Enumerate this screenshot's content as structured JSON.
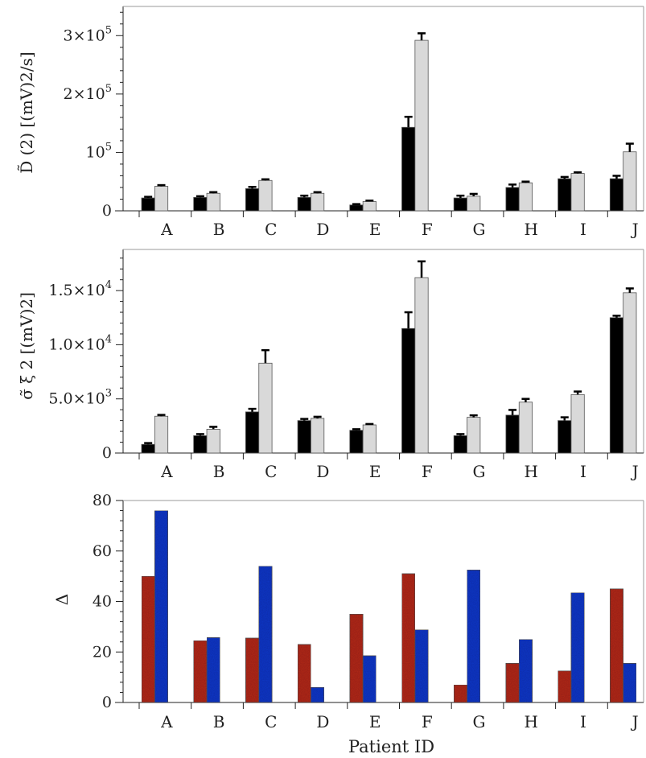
{
  "chart_data": [
    {
      "type": "bar",
      "categories": [
        "A",
        "B",
        "C",
        "D",
        "E",
        "F",
        "G",
        "H",
        "I",
        "J"
      ],
      "ylabel": "D̃ (2)  [(mV)2/s]",
      "ylim": [
        0,
        350000
      ],
      "y_ticks": [
        {
          "value": 0,
          "label": "0",
          "sup": ""
        },
        {
          "value": 100000,
          "label": "10",
          "sup": "5"
        },
        {
          "value": 200000,
          "label": "2×10",
          "sup": "5"
        },
        {
          "value": 300000,
          "label": "3×10",
          "sup": "5"
        }
      ],
      "series": [
        {
          "color": "#000000",
          "values": [
            22000,
            23000,
            38000,
            23000,
            10000,
            143000,
            22000,
            40000,
            55000,
            55000
          ],
          "errors": [
            2000,
            2000,
            3000,
            3000,
            1500,
            18000,
            4000,
            5000,
            3000,
            5000
          ]
        },
        {
          "color": "#d9d9d9",
          "values": [
            42000,
            30000,
            52000,
            30000,
            16000,
            292000,
            25000,
            48000,
            64000,
            101000
          ],
          "errors": [
            2000,
            2000,
            2000,
            2000,
            1500,
            12000,
            4000,
            2000,
            2000,
            14000
          ]
        }
      ],
      "grid": false,
      "legend": "none"
    },
    {
      "type": "bar",
      "categories": [
        "A",
        "B",
        "C",
        "D",
        "E",
        "F",
        "G",
        "H",
        "I",
        "J"
      ],
      "ylabel": "σ̃ ξ 2 [(mV)2]",
      "ylim": [
        0,
        18800
      ],
      "y_ticks": [
        {
          "value": 0,
          "label": "0",
          "sup": ""
        },
        {
          "value": 5000,
          "label": "5.0×10",
          "sup": "3"
        },
        {
          "value": 10000,
          "label": "1.0×10",
          "sup": "4"
        },
        {
          "value": 15000,
          "label": "1.5×10",
          "sup": "4"
        }
      ],
      "series": [
        {
          "color": "#000000",
          "values": [
            800,
            1600,
            3800,
            3000,
            2100,
            11500,
            1600,
            3500,
            3000,
            12500
          ],
          "errors": [
            120,
            150,
            280,
            150,
            100,
            1500,
            150,
            480,
            300,
            180
          ]
        },
        {
          "color": "#d9d9d9",
          "values": [
            3400,
            2200,
            8300,
            3200,
            2600,
            16200,
            3300,
            4700,
            5400,
            14800
          ],
          "errors": [
            120,
            220,
            1200,
            150,
            80,
            1500,
            180,
            300,
            280,
            400
          ]
        }
      ],
      "grid": false,
      "legend": "none"
    },
    {
      "type": "bar",
      "categories": [
        "A",
        "B",
        "C",
        "D",
        "E",
        "F",
        "G",
        "H",
        "I",
        "J"
      ],
      "xlabel": "Patient ID",
      "ylabel": "Δ",
      "ylim": [
        0,
        80
      ],
      "y_ticks": [
        {
          "value": 0,
          "label": "0",
          "sup": ""
        },
        {
          "value": 20,
          "label": "20",
          "sup": ""
        },
        {
          "value": 40,
          "label": "40",
          "sup": ""
        },
        {
          "value": 60,
          "label": "60",
          "sup": ""
        },
        {
          "value": 80,
          "label": "80",
          "sup": ""
        }
      ],
      "series": [
        {
          "color": "#b22a1e",
          "values": [
            50,
            24.5,
            25.5,
            23,
            35,
            51,
            7,
            15.5,
            12.5,
            45
          ]
        },
        {
          "color": "#1838c8",
          "values": [
            76,
            25.7,
            54,
            6,
            18.5,
            28.8,
            52.5,
            25,
            43.5,
            15.5
          ]
        }
      ],
      "grid": false,
      "legend": "none"
    }
  ]
}
